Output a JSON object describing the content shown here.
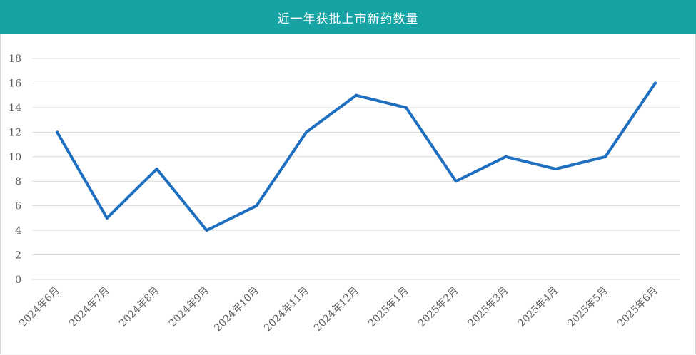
{
  "colors": {
    "title_bg": "#16a3a3",
    "line": "#1f6fc0",
    "grid": "#d9d9d9"
  },
  "chart_data": {
    "type": "line",
    "title": "近一年获批上市新药数量",
    "xlabel": "",
    "ylabel": "",
    "categories": [
      "2024年6月",
      "2024年7月",
      "2024年8月",
      "2024年9月",
      "2024年10月",
      "2024年11月",
      "2024年12月",
      "2025年1月",
      "2025年2月",
      "2025年3月",
      "2025年4月",
      "2025年5月",
      "2025年6月"
    ],
    "series": [
      {
        "values": [
          12,
          5,
          9,
          4,
          6,
          12,
          15,
          14,
          8,
          10,
          9,
          10,
          16
        ]
      }
    ],
    "ylim": [
      0,
      18
    ],
    "yticks": [
      0,
      2,
      4,
      6,
      8,
      10,
      12,
      14,
      16,
      18
    ],
    "grid": true,
    "legend": "none"
  }
}
